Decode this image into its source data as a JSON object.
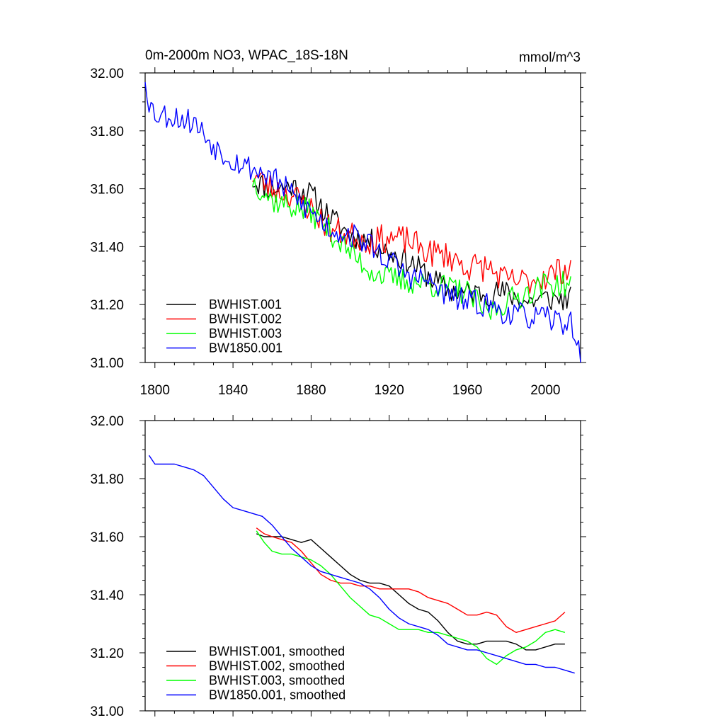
{
  "figure": {
    "title": "0m-2000m NO3, WPAC_18S-18N",
    "units": "mmol/m^3"
  },
  "chart_data": [
    {
      "type": "line",
      "title": "0m-2000m NO3, WPAC_18S-18N",
      "ylabel_right": "mmol/m^3",
      "xlim": [
        1795,
        2018
      ],
      "ylim": [
        31.0,
        32.0
      ],
      "x_ticks": [
        1800,
        1840,
        1880,
        1920,
        1960,
        2000
      ],
      "x_tick_labels": [
        "1800",
        "1840",
        "1880",
        "1920",
        "1960",
        "2000"
      ],
      "y_ticks": [
        31.0,
        31.2,
        31.4,
        31.6,
        31.8,
        32.0
      ],
      "y_tick_labels": [
        "31.00",
        "31.20",
        "31.40",
        "31.60",
        "31.80",
        "32.00"
      ],
      "legend": "bottom-left",
      "series": [
        {
          "name": "BWHIST.001",
          "color": "#000000",
          "noise": 0.045,
          "seed": 11,
          "points": [
            [
              1850,
              31.63
            ],
            [
              1860,
              31.6
            ],
            [
              1870,
              31.61
            ],
            [
              1880,
              31.58
            ],
            [
              1890,
              31.5
            ],
            [
              1900,
              31.44
            ],
            [
              1910,
              31.42
            ],
            [
              1920,
              31.38
            ],
            [
              1930,
              31.35
            ],
            [
              1940,
              31.3
            ],
            [
              1950,
              31.25
            ],
            [
              1960,
              31.24
            ],
            [
              1970,
              31.24
            ],
            [
              1980,
              31.24
            ],
            [
              1990,
              31.21
            ],
            [
              2000,
              31.22
            ],
            [
              2013,
              31.22
            ]
          ]
        },
        {
          "name": "BWHIST.002",
          "color": "#ff0000",
          "noise": 0.05,
          "seed": 23,
          "points": [
            [
              1850,
              31.65
            ],
            [
              1860,
              31.6
            ],
            [
              1870,
              31.58
            ],
            [
              1880,
              31.53
            ],
            [
              1890,
              31.46
            ],
            [
              1900,
              31.44
            ],
            [
              1910,
              31.42
            ],
            [
              1920,
              31.43
            ],
            [
              1930,
              31.42
            ],
            [
              1940,
              31.38
            ],
            [
              1950,
              31.37
            ],
            [
              1960,
              31.33
            ],
            [
              1970,
              31.33
            ],
            [
              1980,
              31.28
            ],
            [
              1990,
              31.28
            ],
            [
              2000,
              31.3
            ],
            [
              2013,
              31.33
            ]
          ]
        },
        {
          "name": "BWHIST.003",
          "color": "#00ff00",
          "noise": 0.045,
          "seed": 37,
          "points": [
            [
              1850,
              31.63
            ],
            [
              1860,
              31.56
            ],
            [
              1870,
              31.54
            ],
            [
              1880,
              31.52
            ],
            [
              1890,
              31.45
            ],
            [
              1900,
              31.38
            ],
            [
              1910,
              31.32
            ],
            [
              1920,
              31.29
            ],
            [
              1930,
              31.28
            ],
            [
              1940,
              31.27
            ],
            [
              1950,
              31.26
            ],
            [
              1960,
              31.24
            ],
            [
              1970,
              31.17
            ],
            [
              1980,
              31.21
            ],
            [
              1990,
              31.24
            ],
            [
              2000,
              31.27
            ],
            [
              2013,
              31.27
            ]
          ]
        },
        {
          "name": "BW1850.001",
          "color": "#0000ff",
          "noise": 0.045,
          "seed": 53,
          "points": [
            [
              1795,
              31.99
            ],
            [
              1797,
              31.9
            ],
            [
              1800,
              31.86
            ],
            [
              1810,
              31.85
            ],
            [
              1820,
              31.83
            ],
            [
              1830,
              31.75
            ],
            [
              1840,
              31.7
            ],
            [
              1850,
              31.67
            ],
            [
              1860,
              31.64
            ],
            [
              1870,
              31.58
            ],
            [
              1880,
              31.52
            ],
            [
              1890,
              31.46
            ],
            [
              1900,
              31.44
            ],
            [
              1910,
              31.41
            ],
            [
              1920,
              31.35
            ],
            [
              1930,
              31.3
            ],
            [
              1940,
              31.28
            ],
            [
              1950,
              31.23
            ],
            [
              1960,
              31.21
            ],
            [
              1970,
              31.2
            ],
            [
              1980,
              31.17
            ],
            [
              1990,
              31.16
            ],
            [
              2000,
              31.15
            ],
            [
              2010,
              31.14
            ],
            [
              2014,
              31.13
            ],
            [
              2016,
              31.07
            ],
            [
              2018,
              31.0
            ]
          ]
        }
      ]
    },
    {
      "type": "line",
      "title": "",
      "xlim": [
        1795,
        2018
      ],
      "ylim": [
        31.0,
        32.0
      ],
      "x_ticks": [
        1800,
        1840,
        1880,
        1920,
        1960,
        2000
      ],
      "y_ticks": [
        31.0,
        31.2,
        31.4,
        31.6,
        31.8,
        32.0
      ],
      "y_tick_labels": [
        "31.00",
        "31.20",
        "31.40",
        "31.60",
        "31.80",
        "32.00"
      ],
      "legend": "bottom-left",
      "series": [
        {
          "name": "BWHIST.001, smoothed",
          "color": "#000000",
          "points": [
            [
              1852,
              31.61
            ],
            [
              1856,
              31.6
            ],
            [
              1860,
              31.6
            ],
            [
              1865,
              31.6
            ],
            [
              1870,
              31.59
            ],
            [
              1875,
              31.58
            ],
            [
              1880,
              31.59
            ],
            [
              1885,
              31.56
            ],
            [
              1890,
              31.53
            ],
            [
              1895,
              31.5
            ],
            [
              1900,
              31.47
            ],
            [
              1905,
              31.45
            ],
            [
              1910,
              31.44
            ],
            [
              1915,
              31.44
            ],
            [
              1920,
              31.43
            ],
            [
              1925,
              31.4
            ],
            [
              1930,
              31.37
            ],
            [
              1935,
              31.35
            ],
            [
              1940,
              31.34
            ],
            [
              1945,
              31.31
            ],
            [
              1950,
              31.27
            ],
            [
              1955,
              31.24
            ],
            [
              1960,
              31.23
            ],
            [
              1965,
              31.23
            ],
            [
              1970,
              31.24
            ],
            [
              1975,
              31.24
            ],
            [
              1980,
              31.24
            ],
            [
              1985,
              31.23
            ],
            [
              1990,
              31.21
            ],
            [
              1995,
              31.21
            ],
            [
              2000,
              31.22
            ],
            [
              2005,
              31.23
            ],
            [
              2010,
              31.23
            ]
          ]
        },
        {
          "name": "BWHIST.002, smoothed",
          "color": "#ff0000",
          "points": [
            [
              1852,
              31.63
            ],
            [
              1856,
              31.61
            ],
            [
              1860,
              31.6
            ],
            [
              1865,
              31.59
            ],
            [
              1870,
              31.58
            ],
            [
              1875,
              31.55
            ],
            [
              1880,
              31.51
            ],
            [
              1885,
              31.47
            ],
            [
              1890,
              31.45
            ],
            [
              1895,
              31.44
            ],
            [
              1900,
              31.44
            ],
            [
              1905,
              31.43
            ],
            [
              1910,
              31.43
            ],
            [
              1915,
              31.42
            ],
            [
              1920,
              31.42
            ],
            [
              1925,
              31.42
            ],
            [
              1930,
              31.42
            ],
            [
              1935,
              31.41
            ],
            [
              1940,
              31.39
            ],
            [
              1945,
              31.38
            ],
            [
              1950,
              31.37
            ],
            [
              1955,
              31.35
            ],
            [
              1960,
              31.33
            ],
            [
              1965,
              31.33
            ],
            [
              1970,
              31.34
            ],
            [
              1975,
              31.33
            ],
            [
              1980,
              31.29
            ],
            [
              1985,
              31.27
            ],
            [
              1990,
              31.28
            ],
            [
              1995,
              31.29
            ],
            [
              2000,
              31.3
            ],
            [
              2005,
              31.31
            ],
            [
              2010,
              31.34
            ]
          ]
        },
        {
          "name": "BWHIST.003, smoothed",
          "color": "#00ff00",
          "points": [
            [
              1852,
              31.62
            ],
            [
              1856,
              31.58
            ],
            [
              1860,
              31.55
            ],
            [
              1865,
              31.54
            ],
            [
              1870,
              31.54
            ],
            [
              1875,
              31.53
            ],
            [
              1880,
              31.52
            ],
            [
              1885,
              31.5
            ],
            [
              1890,
              31.47
            ],
            [
              1895,
              31.43
            ],
            [
              1900,
              31.39
            ],
            [
              1905,
              31.36
            ],
            [
              1910,
              31.33
            ],
            [
              1915,
              31.32
            ],
            [
              1920,
              31.3
            ],
            [
              1925,
              31.28
            ],
            [
              1930,
              31.28
            ],
            [
              1935,
              31.28
            ],
            [
              1940,
              31.27
            ],
            [
              1945,
              31.27
            ],
            [
              1950,
              31.26
            ],
            [
              1955,
              31.25
            ],
            [
              1960,
              31.24
            ],
            [
              1965,
              31.22
            ],
            [
              1970,
              31.18
            ],
            [
              1975,
              31.16
            ],
            [
              1980,
              31.19
            ],
            [
              1985,
              31.21
            ],
            [
              1990,
              31.22
            ],
            [
              1995,
              31.24
            ],
            [
              2000,
              31.27
            ],
            [
              2005,
              31.28
            ],
            [
              2010,
              31.27
            ]
          ]
        },
        {
          "name": "BW1850.001, smoothed",
          "color": "#0000ff",
          "points": [
            [
              1797,
              31.88
            ],
            [
              1800,
              31.85
            ],
            [
              1805,
              31.85
            ],
            [
              1810,
              31.85
            ],
            [
              1815,
              31.84
            ],
            [
              1820,
              31.83
            ],
            [
              1825,
              31.81
            ],
            [
              1830,
              31.77
            ],
            [
              1835,
              31.73
            ],
            [
              1840,
              31.7
            ],
            [
              1845,
              31.69
            ],
            [
              1850,
              31.68
            ],
            [
              1855,
              31.67
            ],
            [
              1860,
              31.64
            ],
            [
              1865,
              31.6
            ],
            [
              1870,
              31.56
            ],
            [
              1875,
              31.53
            ],
            [
              1880,
              31.5
            ],
            [
              1885,
              31.48
            ],
            [
              1890,
              31.47
            ],
            [
              1895,
              31.46
            ],
            [
              1900,
              31.45
            ],
            [
              1905,
              31.44
            ],
            [
              1910,
              31.42
            ],
            [
              1915,
              31.39
            ],
            [
              1920,
              31.35
            ],
            [
              1925,
              31.32
            ],
            [
              1930,
              31.3
            ],
            [
              1935,
              31.29
            ],
            [
              1940,
              31.28
            ],
            [
              1945,
              31.26
            ],
            [
              1950,
              31.23
            ],
            [
              1955,
              31.22
            ],
            [
              1960,
              31.21
            ],
            [
              1965,
              31.21
            ],
            [
              1970,
              31.2
            ],
            [
              1975,
              31.19
            ],
            [
              1980,
              31.18
            ],
            [
              1985,
              31.17
            ],
            [
              1990,
              31.16
            ],
            [
              1995,
              31.16
            ],
            [
              2000,
              31.15
            ],
            [
              2005,
              31.15
            ],
            [
              2010,
              31.14
            ],
            [
              2015,
              31.13
            ]
          ]
        }
      ]
    }
  ]
}
